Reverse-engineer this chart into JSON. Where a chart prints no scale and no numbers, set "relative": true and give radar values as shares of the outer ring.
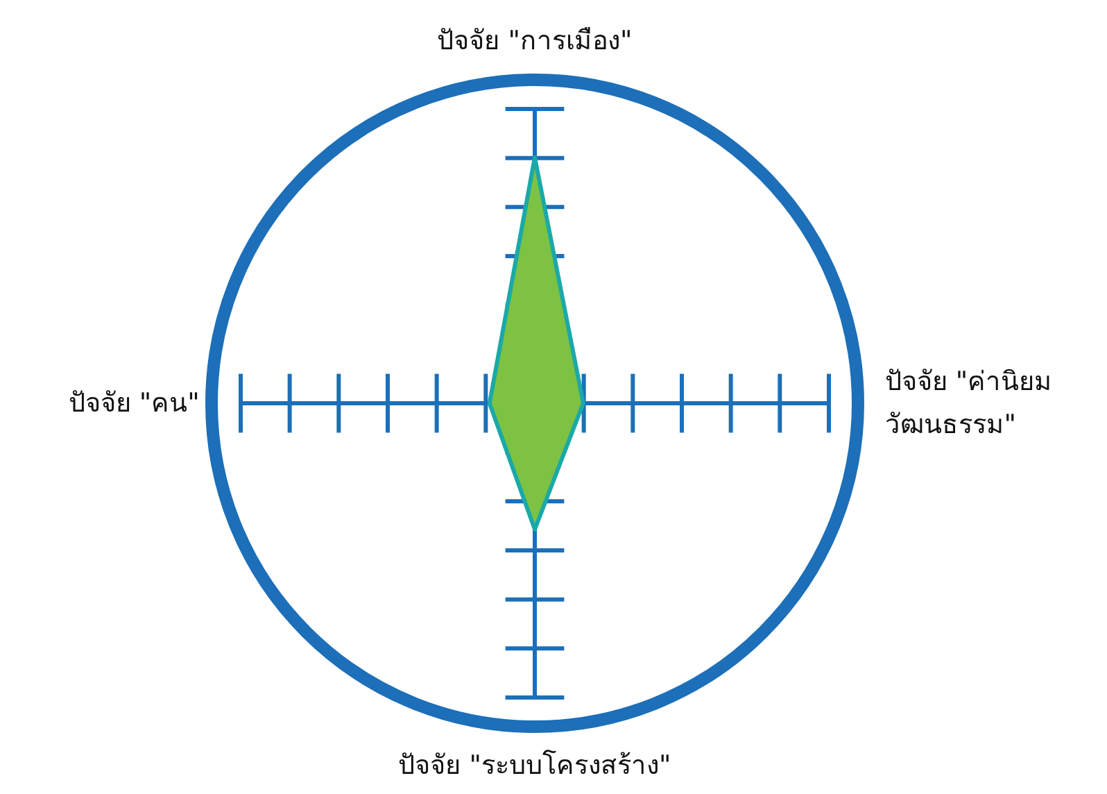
{
  "chart_data": {
    "type": "radar",
    "relative": true,
    "categories": [
      "ปัจจัย \"การเมือง\"",
      "ปัจจัย \"ค่านิยม\nวัฒนธรรม\"",
      "ปัจจัย \"ระบบโครงสร้าง\"",
      "ปัจจัย \"คน\""
    ],
    "series": [
      {
        "color": "#7dc242",
        "values": [
          0.76,
          0.15,
          0.39,
          0.14
        ]
      }
    ],
    "marker": "none"
  }
}
